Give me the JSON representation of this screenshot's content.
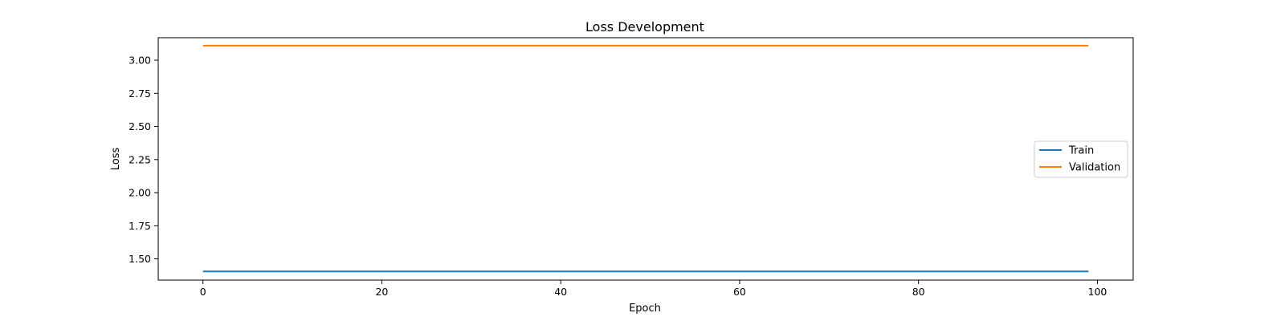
{
  "chart_data": {
    "type": "line",
    "title": "Loss Development",
    "xlabel": "Epoch",
    "ylabel": "Loss",
    "xlim": [
      -5,
      104
    ],
    "ylim": [
      1.34,
      3.17
    ],
    "xticks": [
      0,
      20,
      40,
      60,
      80,
      100
    ],
    "yticks": [
      1.5,
      1.75,
      2.0,
      2.25,
      2.5,
      2.75,
      3.0
    ],
    "xtick_labels": [
      "0",
      "20",
      "40",
      "60",
      "80",
      "100"
    ],
    "ytick_labels": [
      "1.50",
      "1.75",
      "2.00",
      "2.25",
      "2.50",
      "2.75",
      "3.00"
    ],
    "grid": false,
    "legend_position": "center-right",
    "x": [
      0,
      99
    ],
    "series": [
      {
        "name": "Train",
        "values": [
          1.405,
          1.405
        ],
        "color": "#1f77b4"
      },
      {
        "name": "Validation",
        "values": [
          3.11,
          3.11
        ],
        "color": "#ff7f0e"
      }
    ]
  }
}
